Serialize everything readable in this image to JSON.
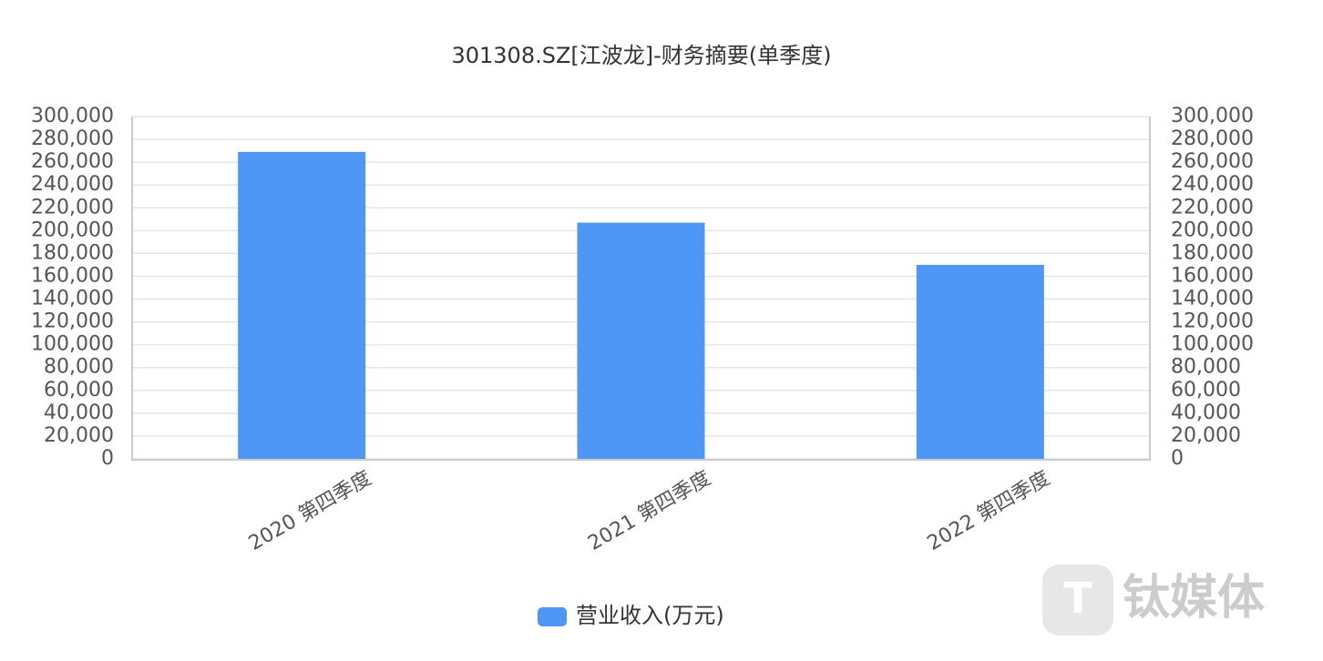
{
  "chart_data": {
    "type": "bar",
    "title": "301308.SZ[江波龙]-财务摘要(单季度)",
    "categories": [
      "2020 第四季度",
      "2021 第四季度",
      "2022 第四季度"
    ],
    "series": [
      {
        "name": "营业收入(万元)",
        "color": "#4f97f7",
        "values": [
          269000,
          207000,
          170000
        ]
      }
    ],
    "ylim": [
      0,
      300000
    ],
    "yticks": [
      0,
      {
        "value": 20000,
        "label": "20,000"
      },
      {
        "value": 40000,
        "label": "40,000"
      },
      {
        "value": 60000,
        "label": "60,000"
      },
      {
        "value": 80000,
        "label": "80,000"
      },
      {
        "value": 100000,
        "label": "100,000"
      },
      {
        "value": 120000,
        "label": "120,000"
      },
      {
        "value": 140000,
        "label": "140,000"
      },
      {
        "value": 160000,
        "label": "160,000"
      },
      {
        "value": 180000,
        "label": "180,000"
      },
      {
        "value": 200000,
        "label": "200,000"
      },
      {
        "value": 220000,
        "label": "220,000"
      },
      {
        "value": 240000,
        "label": "240,000"
      },
      {
        "value": 260000,
        "label": "260,000"
      },
      {
        "value": 280000,
        "label": "280,000"
      },
      {
        "value": 300000,
        "label": "300,000"
      }
    ],
    "y2lim": [
      0,
      300000
    ],
    "y2ticks": [
      0,
      {
        "value": 20000,
        "label": "20,000"
      },
      {
        "value": 40000,
        "label": "40,000"
      },
      {
        "value": 60000,
        "label": "60,000"
      },
      {
        "value": 80000,
        "label": "80,000"
      },
      {
        "value": 100000,
        "label": "100,000"
      },
      {
        "value": 120000,
        "label": "120,000"
      },
      {
        "value": 140000,
        "label": "140,000"
      },
      {
        "value": 160000,
        "label": "160,000"
      },
      {
        "value": 180000,
        "label": "180,000"
      },
      {
        "value": 200000,
        "label": "200,000"
      },
      {
        "value": 220000,
        "label": "220,000"
      },
      {
        "value": 240000,
        "label": "240,000"
      },
      {
        "value": 260000,
        "label": "260,000"
      },
      {
        "value": 280000,
        "label": "280,000"
      },
      {
        "value": 300000,
        "label": "300,000"
      }
    ],
    "grid": true,
    "legend": "bottom",
    "watermark": "钛媒体"
  }
}
